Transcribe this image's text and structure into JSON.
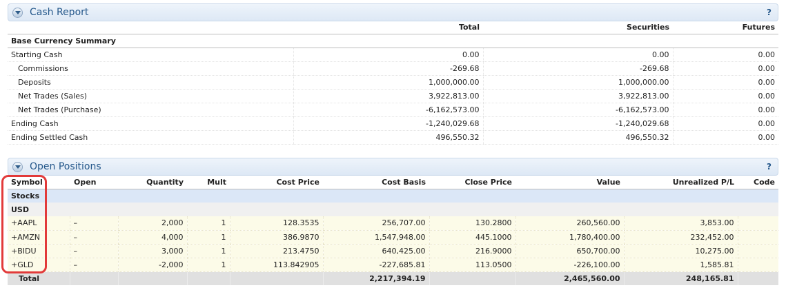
{
  "cash_report": {
    "title": "Cash Report",
    "help": "?",
    "columns": [
      "Total",
      "Securities",
      "Futures"
    ],
    "base_label": "Base Currency Summary",
    "rows": [
      {
        "label": "Starting Cash",
        "total": "0.00",
        "securities": "0.00",
        "futures": "0.00"
      },
      {
        "label": "Commissions",
        "total": "-269.68",
        "securities": "-269.68",
        "futures": "0.00"
      },
      {
        "label": "Deposits",
        "total": "1,000,000.00",
        "securities": "1,000,000.00",
        "futures": "0.00"
      },
      {
        "label": "Net Trades (Sales)",
        "total": "3,922,813.00",
        "securities": "3,922,813.00",
        "futures": "0.00"
      },
      {
        "label": "Net Trades (Purchase)",
        "total": "-6,162,573.00",
        "securities": "-6,162,573.00",
        "futures": "0.00"
      },
      {
        "label": "Ending Cash",
        "total": "-1,240,029.68",
        "securities": "-1,240,029.68",
        "futures": "0.00"
      },
      {
        "label": "Ending Settled Cash",
        "total": "496,550.32",
        "securities": "496,550.32",
        "futures": "0.00"
      }
    ]
  },
  "open_positions": {
    "title": "Open Positions",
    "help": "?",
    "columns": [
      "Symbol",
      "Open",
      "Quantity",
      "Mult",
      "Cost Price",
      "Cost Basis",
      "Close Price",
      "Value",
      "Unrealized P/L",
      "Code"
    ],
    "group_label": "Stocks",
    "currency_label": "USD",
    "rows": [
      {
        "symbol": "+AAPL",
        "open": "–",
        "quantity": "2,000",
        "mult": "1",
        "cost_price": "128.3535",
        "cost_basis": "256,707.00",
        "close_price": "130.2800",
        "value": "260,560.00",
        "unrealized": "3,853.00",
        "code": ""
      },
      {
        "symbol": "+AMZN",
        "open": "–",
        "quantity": "4,000",
        "mult": "1",
        "cost_price": "386.9870",
        "cost_basis": "1,547,948.00",
        "close_price": "445.1000",
        "value": "1,780,400.00",
        "unrealized": "232,452.00",
        "code": ""
      },
      {
        "symbol": "+BIDU",
        "open": "–",
        "quantity": "3,000",
        "mult": "1",
        "cost_price": "213.4750",
        "cost_basis": "640,425.00",
        "close_price": "216.9000",
        "value": "650,700.00",
        "unrealized": "10,275.00",
        "code": ""
      },
      {
        "symbol": "+GLD",
        "open": "–",
        "quantity": "-2,000",
        "mult": "1",
        "cost_price": "113.842905",
        "cost_basis": "-227,685.81",
        "close_price": "113.0500",
        "value": "-226,100.00",
        "unrealized": "1,585.81",
        "code": ""
      }
    ],
    "total": {
      "label": "Total",
      "cost_basis": "2,217,394.19",
      "value": "2,465,560.00",
      "unrealized": "248,165.81"
    }
  },
  "colors": {
    "header_text": "#24578a",
    "highlight": "#e23a3a",
    "group_bg": "#dbe7f7",
    "row_bg": "#fcfbe8"
  }
}
